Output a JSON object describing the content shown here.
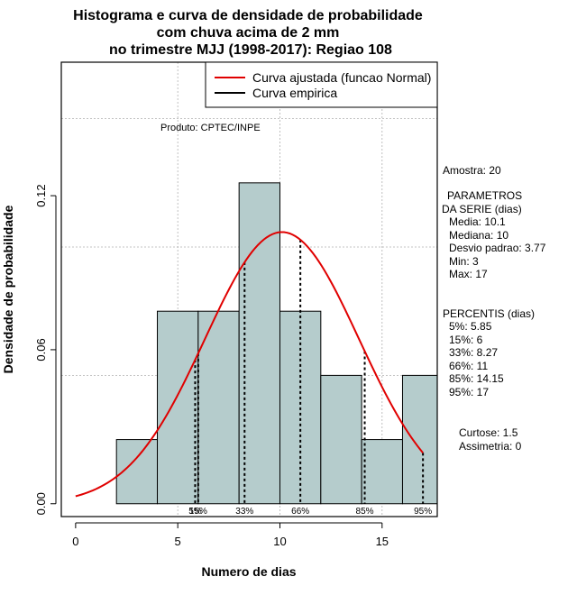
{
  "chart_data": {
    "type": "histogram",
    "title_lines": [
      "Histograma e curva de densidade de probabilidade",
      "com chuva acima de 2 mm",
      "no trimestre MJJ (1998-2017): Regiao 108"
    ],
    "xlabel": "Numero de dias",
    "ylabel": "Densidade de probabilidade",
    "xlim": [
      -0.7,
      17.7
    ],
    "ylim": [
      -0.005,
      0.172
    ],
    "x_ticks": [
      0,
      5,
      10,
      15
    ],
    "y_ticks": [
      0.0,
      0.06,
      0.12
    ],
    "y_tick_labels": [
      "0.00",
      "0.06",
      "0.12"
    ],
    "grid_x": [
      5,
      10,
      15
    ],
    "grid_y": [
      0.05,
      0.1,
      0.15
    ],
    "bars": [
      {
        "x0": 2,
        "x1": 4,
        "density": 0.025
      },
      {
        "x0": 4,
        "x1": 6,
        "density": 0.075
      },
      {
        "x0": 6,
        "x1": 8,
        "density": 0.075
      },
      {
        "x0": 8,
        "x1": 10,
        "density": 0.125
      },
      {
        "x0": 10,
        "x1": 12,
        "density": 0.075
      },
      {
        "x0": 12,
        "x1": 14,
        "density": 0.05
      },
      {
        "x0": 14,
        "x1": 16,
        "density": 0.025
      },
      {
        "x0": 16,
        "x1": 18,
        "density": 0.05
      }
    ],
    "normal_fit": {
      "mean": 10.1,
      "sd": 3.77,
      "x_from": 0,
      "x_to": 17
    },
    "percentile_markers": [
      {
        "label": "5%",
        "x": 5.85
      },
      {
        "label": "15%",
        "x": 6
      },
      {
        "label": "33%",
        "x": 8.27
      },
      {
        "label": "66%",
        "x": 11
      },
      {
        "label": "85%",
        "x": 14.15
      },
      {
        "label": "95%",
        "x": 17
      }
    ],
    "legend": {
      "position": "top-right",
      "entries": [
        {
          "label": "Curva ajustada (funcao Normal)",
          "color": "#e00000"
        },
        {
          "label": "Curva empirica",
          "color": "#000000"
        }
      ]
    },
    "annotation": "Produto: CPTEC/INPE"
  },
  "side_panel": {
    "sample": "Amostra: 20",
    "params_lines": [
      "PARAMETROS",
      "DA SERIE (dias)",
      "Media: 10.1",
      "Mediana: 10",
      "Desvio padrao: 3.77",
      "Min: 3",
      "Max: 17"
    ],
    "percentis_lines": [
      "PERCENTIS (dias)",
      "5%: 5.85",
      "15%: 6",
      "33%: 8.27",
      "66%: 11",
      "85%: 14.15",
      "95%: 17"
    ],
    "shape_lines": [
      "Curtose: 1.5",
      "Assimetria: 0"
    ]
  },
  "colors": {
    "bar_fill": "#b5cccc",
    "curve": "#e00000",
    "grid": "#b0b0b0"
  }
}
